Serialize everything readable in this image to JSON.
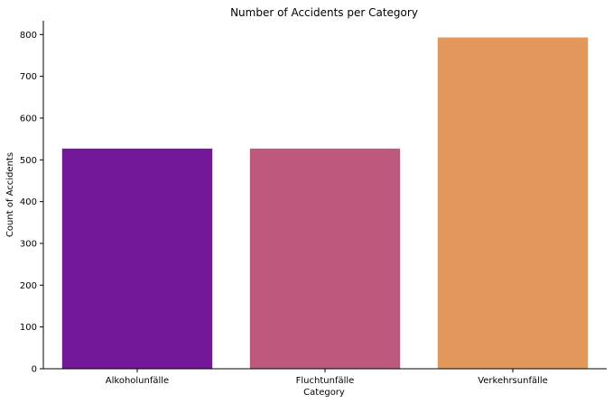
{
  "chart_data": {
    "type": "bar",
    "title": "Number of Accidents per Category",
    "xlabel": "Category",
    "ylabel": "Count of Accidents",
    "categories": [
      "Alkoholunfälle",
      "Fluchtunfälle",
      "Verkehrsunfälle"
    ],
    "values": [
      527,
      527,
      793
    ],
    "colors": [
      "#74189a",
      "#bd597c",
      "#e1985a"
    ],
    "ylim": [
      0,
      833
    ],
    "yticks": [
      0,
      100,
      200,
      300,
      400,
      500,
      600,
      700,
      800
    ],
    "grid": false,
    "legend": "none"
  }
}
